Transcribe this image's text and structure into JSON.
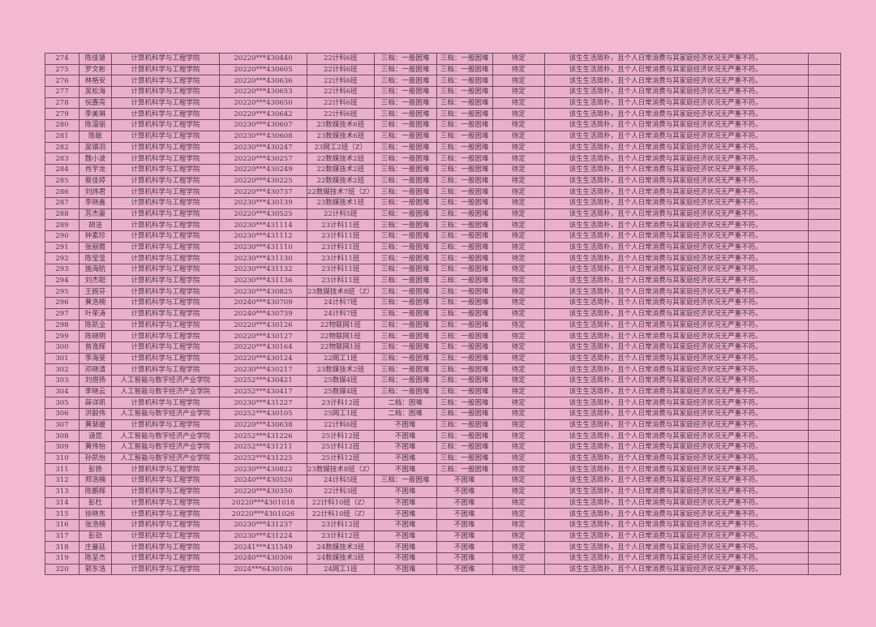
{
  "table": {
    "rows": [
      [
        "274",
        "陈佳慧",
        "计算机科学与工程学院",
        "20220***430440",
        "22计科6班",
        "三档：一般困难",
        "三档：一般困难",
        "待定",
        "该生生活简朴，且个人日常消费与其家庭经济状况无严重不符。",
        ""
      ],
      [
        "275",
        "罗文彬",
        "计算机科学与工程学院",
        "20220***430605",
        "22计科6班",
        "三档：一般困难",
        "三档：一般困难",
        "待定",
        "该生生活简朴，且个人日常消费与其家庭经济状况无严重不符。",
        ""
      ],
      [
        "276",
        "林格安",
        "计算机科学与工程学院",
        "20220***430636",
        "22计科6班",
        "三档：一般困难",
        "三档：一般困难",
        "待定",
        "该生生活简朴，且个人日常消费与其家庭经济状况无严重不符。",
        ""
      ],
      [
        "277",
        "吴松海",
        "计算机科学与工程学院",
        "20220***430653",
        "22计科6班",
        "三档：一般困难",
        "三档：一般困难",
        "待定",
        "该生生活简朴，且个人日常消费与其家庭经济状况无严重不符。",
        ""
      ],
      [
        "278",
        "倪嘉亮",
        "计算机科学与工程学院",
        "20220***430650",
        "22计科6班",
        "三档：一般困难",
        "三档：一般困难",
        "待定",
        "该生生活简朴，且个人日常消费与其家庭经济状况无严重不符。",
        ""
      ],
      [
        "279",
        "李美琳",
        "计算机科学与工程学院",
        "20220***430642",
        "22计科6班",
        "三档：一般困难",
        "三档：一般困难",
        "待定",
        "该生生活简朴，且个人日常消费与其家庭经济状况无严重不符。",
        ""
      ],
      [
        "280",
        "陈漫丽",
        "计算机科学与工程学院",
        "20230***430607",
        "23数媒技术6班",
        "三档：一般困难",
        "三档：一般困难",
        "待定",
        "该生生活简朴，且个人日常消费与其家庭经济状况无严重不符。",
        ""
      ],
      [
        "281",
        "陈敏",
        "计算机科学与工程学院",
        "20230***430608",
        "23数媒技术6班",
        "三档：一般困难",
        "三档：一般困难",
        "待定",
        "该生生活简朴，且个人日常消费与其家庭经济状况无严重不符。",
        ""
      ],
      [
        "282",
        "吴镇羽",
        "计算机科学与工程学院",
        "20230***430247",
        "23网工2班（Z）",
        "三档：一般困难",
        "三档：一般困难",
        "待定",
        "该生生活简朴，且个人日常消费与其家庭经济状况无严重不符。",
        ""
      ],
      [
        "283",
        "魏小波",
        "计算机科学与工程学院",
        "20220***430257",
        "22数媒技术2班",
        "三档：一般困难",
        "三档：一般困难",
        "待定",
        "该生生活简朴，且个人日常消费与其家庭经济状况无严重不符。",
        ""
      ],
      [
        "284",
        "肖宇龙",
        "计算机科学与工程学院",
        "20220***430249",
        "22数媒技术2班",
        "三档：一般困难",
        "三档：一般困难",
        "待定",
        "该生生活简朴，且个人日常消费与其家庭经济状况无严重不符。",
        ""
      ],
      [
        "285",
        "蔡佳婷",
        "计算机科学与工程学院",
        "20220***430225",
        "22数媒技术2班",
        "三档：一般困难",
        "三档：一般困难",
        "待定",
        "该生生活简朴，且个人日常消费与其家庭经济状况无严重不符。",
        ""
      ],
      [
        "286",
        "刘炜君",
        "计算机科学与工程学院",
        "20220***430737",
        "22数媒技术7班（Z）",
        "三档：一般困难",
        "三档：一般困难",
        "待定",
        "该生生活简朴，且个人日常消费与其家庭经济状况无严重不符。",
        ""
      ],
      [
        "287",
        "李晓鑫",
        "计算机科学与工程学院",
        "20230***430139",
        "23数媒技术1班",
        "三档：一般困难",
        "三档：一般困难",
        "待定",
        "该生生活简朴，且个人日常消费与其家庭经济状况无严重不符。",
        ""
      ],
      [
        "288",
        "苏杰豪",
        "计算机科学与工程学院",
        "20220***430525",
        "22计科5班",
        "三档：一般困难",
        "三档：一般困难",
        "待定",
        "该生生活简朴，且个人日常消费与其家庭经济状况无严重不符。",
        ""
      ],
      [
        "289",
        "胡洁",
        "计算机科学与工程学院",
        "20230***431114",
        "23计科11班",
        "三档：一般困难",
        "三档：一般困难",
        "待定",
        "该生生活简朴，且个人日常消费与其家庭经济状况无严重不符。",
        ""
      ],
      [
        "290",
        "钟素珍",
        "计算机科学与工程学院",
        "20230***431112",
        "23计科11班",
        "三档：一般困难",
        "三档：一般困难",
        "待定",
        "该生生活简朴，且个人日常消费与其家庭经济状况无严重不符。",
        ""
      ],
      [
        "291",
        "张丽霞",
        "计算机科学与工程学院",
        "20230***431110",
        "23计科11班",
        "三档：一般困难",
        "三档：一般困难",
        "待定",
        "该生生活简朴，且个人日常消费与其家庭经济状况无严重不符。",
        ""
      ],
      [
        "292",
        "陈莹莹",
        "计算机科学与工程学院",
        "20230***431130",
        "23计科11班",
        "三档：一般困难",
        "三档：一般困难",
        "待定",
        "该生生活简朴，且个人日常消费与其家庭经济状况无严重不符。",
        ""
      ],
      [
        "293",
        "施海航",
        "计算机科学与工程学院",
        "20230***431132",
        "23计科11班",
        "三档：一般困难",
        "三档：一般困难",
        "待定",
        "该生生活简朴，且个人日常消费与其家庭经济状况无严重不符。",
        ""
      ],
      [
        "294",
        "刘杰聪",
        "计算机科学与工程学院",
        "20230***431136",
        "23计科11班",
        "三档：一般困难",
        "三档：一般困难",
        "待定",
        "该生生活简朴，且个人日常消费与其家庭经济状况无严重不符。",
        ""
      ],
      [
        "295",
        "王婉芬",
        "计算机科学与工程学院",
        "20230***430825",
        "23数媒技术8班（Z）",
        "三档：一般困难",
        "三档：一般困难",
        "待定",
        "该生生活简朴，且个人日常消费与其家庭经济状况无严重不符。",
        ""
      ],
      [
        "296",
        "黄浩楠",
        "计算机科学与工程学院",
        "20240***430709",
        "24计科7班",
        "三档：一般困难",
        "三档：一般困难",
        "待定",
        "该生生活简朴，且个人日常消费与其家庭经济状况无严重不符。",
        ""
      ],
      [
        "297",
        "叶荣涛",
        "计算机科学与工程学院",
        "20240***430739",
        "24计科7班",
        "三档：一般困难",
        "三档：一般困难",
        "待定",
        "该生生活简朴，且个人日常消费与其家庭经济状况无严重不符。",
        ""
      ],
      [
        "298",
        "陈凯全",
        "计算机科学与工程学院",
        "20220***430126",
        "22物联网1班",
        "三档：一般困难",
        "三档：一般困难",
        "待定",
        "该生生活简朴，且个人日常消费与其家庭经济状况无严重不符。",
        ""
      ],
      [
        "299",
        "陈晓明",
        "计算机科学与工程学院",
        "20220***430127",
        "22物联网1班",
        "三档：一般困难",
        "三档：一般困难",
        "待定",
        "该生生活简朴，且个人日常消费与其家庭经济状况无严重不符。",
        ""
      ],
      [
        "300",
        "曾逸辉",
        "计算机科学与工程学院",
        "20220***430164",
        "22物联网1班",
        "三档：一般困难",
        "三档：一般困难",
        "待定",
        "该生生活简朴，且个人日常消费与其家庭经济状况无严重不符。",
        ""
      ],
      [
        "301",
        "李海斐",
        "计算机科学与工程学院",
        "20220***430124",
        "22网工1班",
        "三档：一般困难",
        "三档：一般困难",
        "待定",
        "该生生活简朴，且个人日常消费与其家庭经济状况无严重不符。",
        ""
      ],
      [
        "302",
        "邓晓清",
        "计算机科学与工程学院",
        "20230***430217",
        "23数媒技术2班",
        "三档：一般困难",
        "三档：一般困难",
        "待定",
        "该生生活简朴，且个人日常消费与其家庭经济状况无严重不符。",
        ""
      ],
      [
        "303",
        "刘煜扬",
        "人工智能与数字经济产业学院",
        "20252***430421",
        "25数媒4班",
        "三档：一般困难",
        "三档：一般困难",
        "待定",
        "该生生活简朴，且个人日常消费与其家庭经济状况无严重不符。",
        ""
      ],
      [
        "304",
        "李晓云",
        "人工智能与数字经济产业学院",
        "20252***430417",
        "25数媒4班",
        "三档：一般困难",
        "三档：一般困难",
        "待定",
        "该生生活简朴，且个人日常消费与其家庭经济状况无严重不符。",
        ""
      ],
      [
        "305",
        "薛详凯",
        "计算机科学与工程学院",
        "20230***431227",
        "23计科12班",
        "二档：困难",
        "三档：一般困难",
        "待定",
        "该生生活简朴，且个人日常消费与其家庭经济状况无严重不符。",
        ""
      ],
      [
        "306",
        "洪毅伟",
        "人工智能与数字经济产业学院",
        "20252***430105",
        "25网工1班",
        "二档：困难",
        "三档：一般困难",
        "待定",
        "该生生活简朴，且个人日常消费与其家庭经济状况无严重不符。",
        ""
      ],
      [
        "307",
        "黄慧媛",
        "计算机科学与工程学院",
        "20220***430638",
        "22计科6班",
        "不困难",
        "三档：一般困难",
        "待定",
        "该生生活简朴，且个人日常消费与其家庭经济状况无严重不符。",
        ""
      ],
      [
        "308",
        "涵昆",
        "人工智能与数字经济产业学院",
        "20252***431226",
        "25计科12班",
        "不困难",
        "三档：一般困难",
        "待定",
        "该生生活简朴，且个人日常消费与其家庭经济状况无严重不符。",
        ""
      ],
      [
        "309",
        "黄伟怡",
        "人工智能与数字经济产业学院",
        "20252***431211",
        "25计科12班",
        "不困难",
        "三档：一般困难",
        "待定",
        "该生生活简朴，且个人日常消费与其家庭经济状况无严重不符。",
        ""
      ],
      [
        "310",
        "孙凯怡",
        "人工智能与数字经济产业学院",
        "20252***431225",
        "25计科12班",
        "不困难",
        "三档：一般困难",
        "待定",
        "该生生活简朴，且个人日常消费与其家庭经济状况无严重不符。",
        ""
      ],
      [
        "311",
        "彭扬",
        "计算机科学与工程学院",
        "20230***430822",
        "23数媒技术8班（Z）",
        "不困难",
        "三档：一般困难",
        "待定",
        "该生生活简朴，且个人日常消费与其家庭经济状况无严重不符。",
        ""
      ],
      [
        "312",
        "郑浩楠",
        "计算机科学与工程学院",
        "20240***430520",
        "24计科5班",
        "三档：一般困难",
        "不困难",
        "待定",
        "该生生活简朴，且个人日常消费与其家庭经济状况无严重不符。",
        ""
      ],
      [
        "313",
        "陈鹏辉",
        "计算机科学与工程学院",
        "20220***430350",
        "22计科3班",
        "不困难",
        "不困难",
        "待定",
        "该生生活简朴，且个人日常消费与其家庭经济状况无严重不符。",
        ""
      ],
      [
        "314",
        "彭杜",
        "计算机科学与工程学院",
        "20220***4301018",
        "22计科10班（Z）",
        "不困难",
        "不困难",
        "待定",
        "该生生活简朴，且个人日常消费与其家庭经济状况无严重不符。",
        ""
      ],
      [
        "315",
        "徐晓东",
        "计算机科学与工程学院",
        "20220***4301026",
        "22计科10班（Z）",
        "不困难",
        "不困难",
        "待定",
        "该生生活简朴，且个人日常消费与其家庭经济状况无严重不符。",
        ""
      ],
      [
        "316",
        "张浩楠",
        "计算机科学与工程学院",
        "20230***431237",
        "23计科12班",
        "不困难",
        "不困难",
        "待定",
        "该生生活简朴，且个人日常消费与其家庭经济状况无严重不符。",
        ""
      ],
      [
        "317",
        "彭劲",
        "计算机科学与工程学院",
        "20230***431224",
        "23计科12班",
        "不困难",
        "不困难",
        "待定",
        "该生生活简朴，且个人日常消费与其家庭经济状况无严重不符。",
        ""
      ],
      [
        "318",
        "庄曼廷",
        "计算机科学与工程学院",
        "20241***431549",
        "24数媒技术3班",
        "不困难",
        "不困难",
        "待定",
        "该生生活简朴，且个人日常消费与其家庭经济状况无严重不符。",
        ""
      ],
      [
        "319",
        "陈呈杰",
        "计算机科学与工程学院",
        "20240***430306",
        "24数媒技术3班",
        "不困难",
        "不困难",
        "待定",
        "该生生活简朴，且个人日常消费与其家庭经济状况无严重不符。",
        ""
      ],
      [
        "320",
        "郭东浩",
        "计算机科学与工程学院",
        "2024***6430106",
        "24网工1班",
        "不困难",
        "不困难",
        "待定",
        "该生生活简朴，且个人日常消费与其家庭经济状况无严重不符。",
        ""
      ]
    ]
  }
}
